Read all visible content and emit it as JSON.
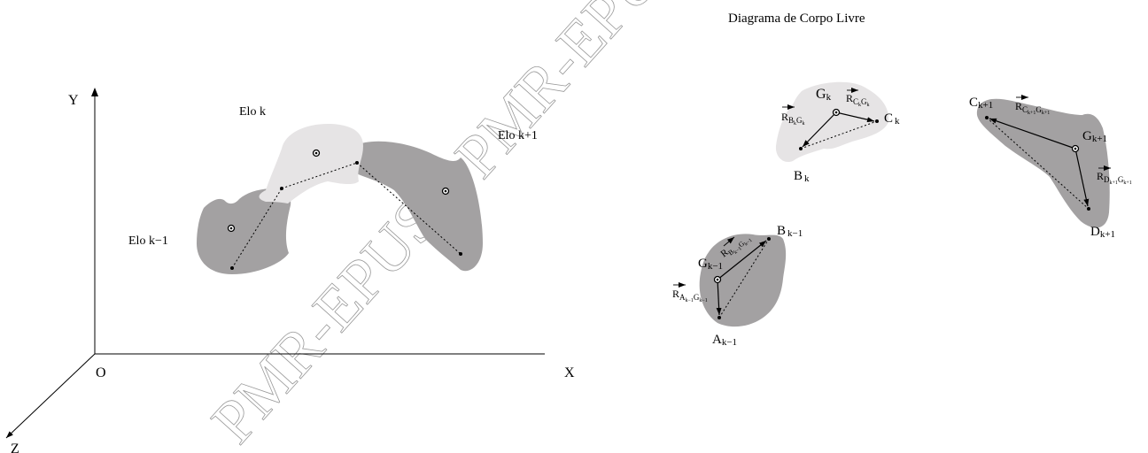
{
  "title": "Diagrama de Corpo Livre",
  "watermark": [
    "PMR-EPUSP",
    "PMR-EPUSP"
  ],
  "axes": {
    "y": "Y",
    "x": "X",
    "z": "Z",
    "origin": "O"
  },
  "links": {
    "prev": "Elo k−1",
    "curr": "Elo k",
    "next": "Elo k+1"
  },
  "fbd": {
    "k": {
      "G": {
        "base": "G",
        "sub": "k"
      },
      "C": {
        "base": "C",
        "sub": "k"
      },
      "B": {
        "base": "B",
        "sub": "k"
      },
      "R_BG": {
        "base": "R",
        "sub": "B",
        "subsub": "k",
        "sub2": "G",
        "subsub2": "k"
      },
      "R_CG": {
        "base": "R",
        "sub": "C",
        "subsub": "k",
        "sub2": "G",
        "subsub2": "k"
      }
    },
    "k_plus": {
      "C": {
        "base": "C",
        "sub": "k+1"
      },
      "G": {
        "base": "G",
        "sub": "k+1"
      },
      "D": {
        "base": "D",
        "sub": "k+1"
      },
      "R_CG": {
        "base": "R",
        "sub": "C",
        "subsub": "k+1",
        "sub2": "G",
        "subsub2": "k+1"
      },
      "R_DG": {
        "base": "R",
        "sub": "D",
        "subsub": "k+1",
        "sub2": "G",
        "subsub2": "k+1"
      }
    },
    "k_minus": {
      "B": {
        "base": "B",
        "sub": "k−1"
      },
      "G": {
        "base": "G",
        "sub": "k−1"
      },
      "A": {
        "base": "A",
        "sub": "k−1"
      },
      "R_BG": {
        "base": "R",
        "sub": "B",
        "subsub": "k−1",
        "sub2": "G",
        "subsub2": "k−1"
      },
      "R_AG": {
        "base": "R",
        "sub": "A",
        "subsub": "k−1",
        "sub2": "G",
        "subsub2": "k−1"
      }
    }
  },
  "colors": {
    "dark": "#a3a1a2",
    "light": "#e6e4e5",
    "ink": "#000000"
  }
}
